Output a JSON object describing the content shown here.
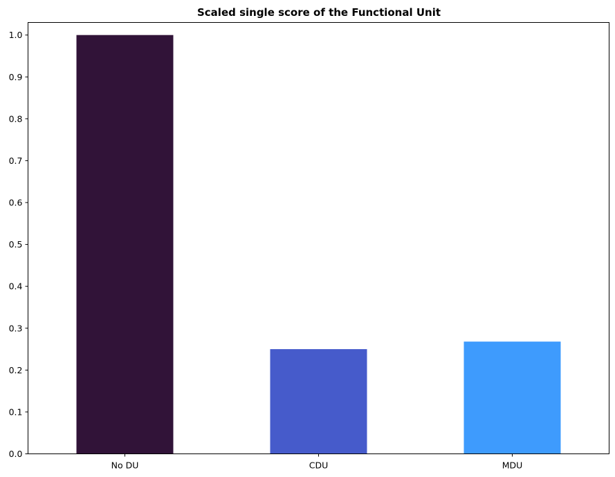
{
  "chart_data": {
    "type": "bar",
    "title": "Scaled single score of the Functional Unit",
    "xlabel": "",
    "ylabel": "",
    "categories": [
      "No DU",
      "CDU",
      "MDU"
    ],
    "values": [
      1.0,
      0.25,
      0.268
    ],
    "colors": [
      "#311338",
      "#465bcb",
      "#3e9bfd"
    ],
    "ylim": [
      0,
      1.03
    ],
    "yticks": [
      0.0,
      0.1,
      0.2,
      0.3,
      0.4,
      0.5,
      0.6,
      0.7,
      0.8,
      0.9,
      1.0
    ],
    "ytick_labels": [
      "0.0",
      "0.1",
      "0.2",
      "0.3",
      "0.4",
      "0.5",
      "0.6",
      "0.7",
      "0.8",
      "0.9",
      "1.0"
    ],
    "grid": false,
    "legend": "none"
  }
}
